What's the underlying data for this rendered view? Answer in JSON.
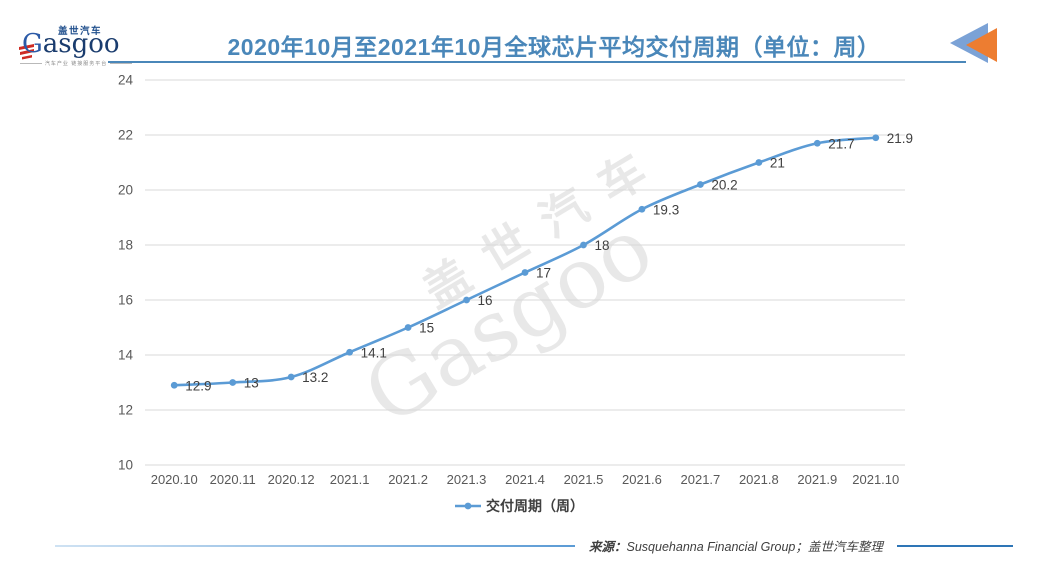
{
  "header": {
    "logo": {
      "name_cn": "盖世汽车",
      "name_en": "Gasgoo",
      "tagline": "汽车产业 链接服务平台"
    },
    "title": "2020年10月至2021年10月全球芯片平均交付周期（单位：周）",
    "accent_color": "#4A87B9",
    "arrow_icon_colors": {
      "blue": "#7BA2D6",
      "orange": "#ED7D31"
    }
  },
  "watermark": {
    "line1": "盖世汽车",
    "line2": "Gasgoo"
  },
  "chart_data": {
    "type": "line",
    "title": "2020年10月至2021年10月全球芯片平均交付周期（单位：周）",
    "unit": "周",
    "categories": [
      "2020.10",
      "2020.11",
      "2020.12",
      "2021.1",
      "2021.2",
      "2021.3",
      "2021.4",
      "2021.5",
      "2021.6",
      "2021.7",
      "2021.8",
      "2021.9",
      "2021.10"
    ],
    "series": [
      {
        "name": "交付周期（周）",
        "values": [
          12.9,
          13,
          13.2,
          14.1,
          15,
          16,
          17,
          18,
          19.3,
          20.2,
          21,
          21.7,
          21.9
        ],
        "color": "#5B9BD5"
      }
    ],
    "data_labels": [
      "12.9",
      "13",
      "13.2",
      "14.1",
      "15",
      "16",
      "17",
      "18",
      "19.3",
      "20.2",
      "21",
      "21.7",
      "21.9"
    ],
    "xlabel": "",
    "ylabel": "",
    "ylim": [
      10,
      24
    ],
    "ytick_step": 2,
    "grid": true,
    "gridline_color": "#D9D9D9",
    "tick_label_color": "#595959",
    "data_label_color": "#404040",
    "legend_position": "bottom"
  },
  "legend": {
    "label": "交付周期（周）",
    "marker_color": "#5B9BD5"
  },
  "footer": {
    "source_label": "来源：",
    "source_text": "Susquehanna Financial Group；盖世汽车整理"
  }
}
